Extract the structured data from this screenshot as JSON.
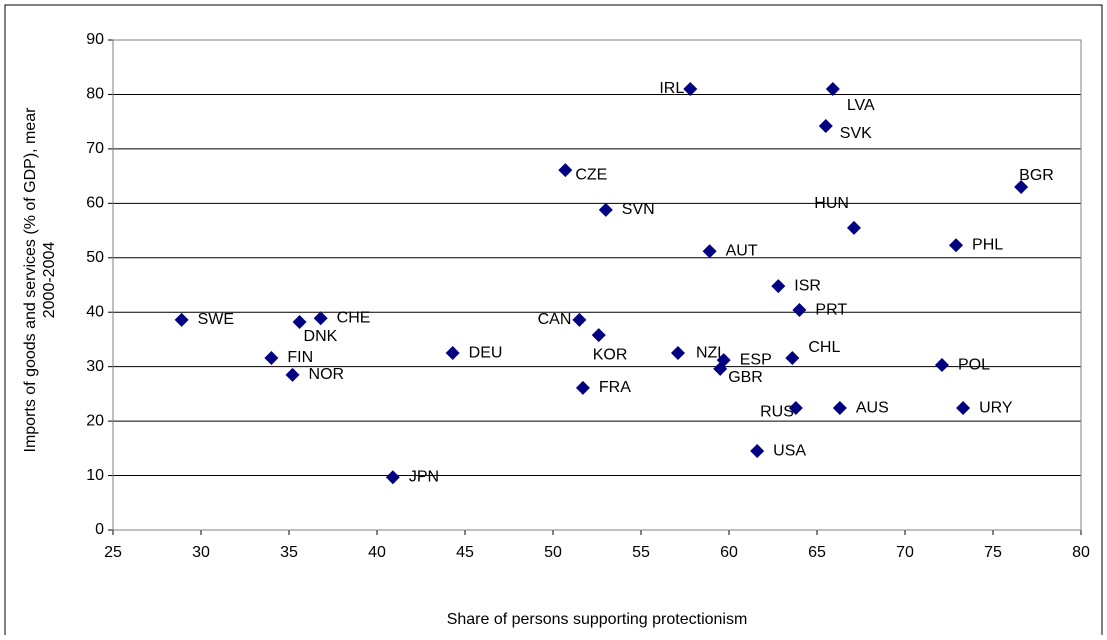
{
  "chart_data": {
    "type": "scatter",
    "xlabel": "Share of persons supporting protectionism",
    "ylabel": [
      "Imports of goods and services (% of GDP), mear",
      "2000-2004"
    ],
    "color": "#000080",
    "xlim": [
      25,
      80
    ],
    "xticks": [
      25,
      30,
      35,
      40,
      45,
      50,
      55,
      60,
      65,
      70,
      75,
      80
    ],
    "ylim": [
      0,
      90
    ],
    "yticks": [
      0,
      10,
      20,
      30,
      40,
      50,
      60,
      70,
      80,
      90
    ],
    "grid": true,
    "labels": [
      "SWE",
      "FIN",
      "NOR",
      "DNK",
      "CHE",
      "JPN",
      "DEU",
      "CZE",
      "CAN",
      "KOR",
      "FRA",
      "SVN",
      "NZL",
      "IRL",
      "AUT",
      "GBR",
      "ESP",
      "USA",
      "ISR",
      "RUS",
      "CHL",
      "PRT",
      "SVK",
      "LVA",
      "AUS",
      "HUN",
      "POL",
      "PHL",
      "URY",
      "BGR"
    ],
    "x": [
      28.9,
      34.0,
      35.2,
      35.6,
      36.8,
      40.9,
      44.3,
      50.7,
      51.5,
      52.6,
      51.7,
      53.0,
      57.1,
      57.8,
      58.9,
      59.5,
      59.7,
      61.6,
      62.8,
      63.8,
      63.6,
      64.0,
      65.5,
      65.9,
      66.3,
      67.1,
      72.1,
      72.9,
      73.3,
      76.6
    ],
    "values": [
      38.6,
      31.6,
      28.5,
      38.2,
      38.9,
      9.7,
      32.5,
      66.1,
      38.6,
      35.8,
      26.1,
      58.8,
      32.5,
      81.0,
      51.2,
      29.6,
      31.2,
      14.5,
      44.8,
      22.4,
      31.6,
      40.4,
      74.2,
      81.0,
      22.4,
      55.5,
      30.3,
      52.3,
      22.4,
      63.0
    ]
  }
}
